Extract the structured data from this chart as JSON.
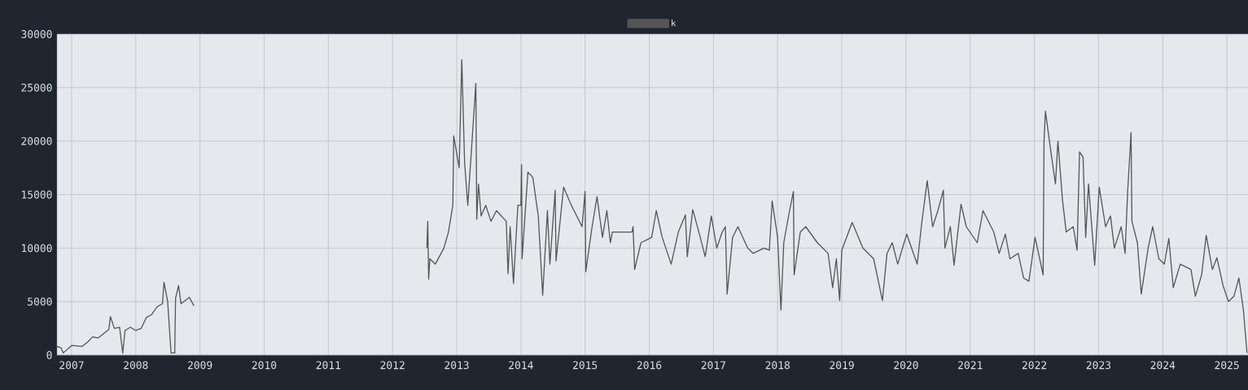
{
  "chart_data": {
    "type": "line",
    "legend": "top",
    "grid": true,
    "marker": "none",
    "line_style": "solid",
    "xlim": [
      "2006-10-10",
      "2025-05-01"
    ],
    "xticks": [
      "2007",
      "2008",
      "2009",
      "2010",
      "2011",
      "2012",
      "2013",
      "2014",
      "2015",
      "2016",
      "2017",
      "2018",
      "2019",
      "2020",
      "2021",
      "2022",
      "2023",
      "2024",
      "2025"
    ],
    "ylim": [
      0,
      30000
    ],
    "yticks": [
      0,
      5000,
      10000,
      15000,
      20000,
      25000,
      30000
    ],
    "series": [
      {
        "name": "k",
        "color": "#555555",
        "x": [
          "2006-10-10",
          "2006-11-01",
          "2006-11-15",
          "2007-01-01",
          "2007-03-01",
          "2007-04-01",
          "2007-05-01",
          "2007-06-01",
          "2007-07-01",
          "2007-08-01",
          "2007-08-10",
          "2007-09-01",
          "2007-10-01",
          "2007-10-19",
          "2007-11-01",
          "2007-12-01",
          "2008-01-01",
          "2008-02-01",
          "2008-03-01",
          "2008-04-01",
          "2008-05-01",
          "2008-06-01",
          "2008-06-10",
          "2008-07-01",
          "2008-07-20",
          "2008-08-10",
          "2008-08-15",
          "2008-09-01",
          "2008-09-15",
          "2008-10-01",
          "2008-11-01",
          "2008-11-28",
          "2010-01-01",
          "2012-07-15",
          "2012-07-20",
          "2012-07-25",
          "2012-08-01",
          "2012-09-01",
          "2012-10-20",
          "2012-11-15",
          "2012-12-10",
          "2012-12-15",
          "2013-01-15",
          "2013-01-30",
          "2013-02-15",
          "2013-03-05",
          "2013-04-20",
          "2013-04-25",
          "2013-05-05",
          "2013-05-20",
          "2013-06-15",
          "2013-07-15",
          "2013-08-15",
          "2013-10-10",
          "2013-10-20",
          "2013-11-01",
          "2013-11-20",
          "2013-12-15",
          "2014-01-01",
          "2014-01-05",
          "2014-01-08",
          "2014-02-10",
          "2014-03-10",
          "2014-04-10",
          "2014-05-05",
          "2014-06-01",
          "2014-06-15",
          "2014-07-15",
          "2014-07-20",
          "2014-09-01",
          "2014-10-15",
          "2014-12-15",
          "2015-01-01",
          "2015-01-05",
          "2015-02-10",
          "2015-03-10",
          "2015-04-10",
          "2015-05-05",
          "2015-05-25",
          "2015-06-05",
          "2015-09-25",
          "2015-10-01",
          "2015-10-10",
          "2015-11-15",
          "2016-01-15",
          "2016-02-10",
          "2016-03-15",
          "2016-05-05",
          "2016-06-15",
          "2016-07-25",
          "2016-08-05",
          "2016-09-05",
          "2016-10-10",
          "2016-11-15",
          "2016-12-20",
          "2017-01-20",
          "2017-02-20",
          "2017-03-10",
          "2017-03-20",
          "2017-04-20",
          "2017-05-20",
          "2017-07-15",
          "2017-08-15",
          "2017-10-15",
          "2017-11-15",
          "2017-12-01",
          "2018-01-01",
          "2018-01-20",
          "2018-02-05",
          "2018-03-10",
          "2018-04-01",
          "2018-04-05",
          "2018-05-10",
          "2018-06-10",
          "2018-08-15",
          "2018-10-15",
          "2018-11-10",
          "2018-12-01",
          "2018-12-20",
          "2019-01-01",
          "2019-03-01",
          "2019-05-01",
          "2019-07-01",
          "2019-08-20",
          "2019-09-15",
          "2019-10-15",
          "2019-11-15",
          "2020-01-05",
          "2020-03-05",
          "2020-04-01",
          "2020-05-01",
          "2020-06-01",
          "2020-07-01",
          "2020-08-01",
          "2020-08-10",
          "2020-09-10",
          "2020-10-01",
          "2020-11-10",
          "2020-12-10",
          "2021-02-10",
          "2021-03-15",
          "2021-05-15",
          "2021-06-15",
          "2021-07-20",
          "2021-08-15",
          "2021-10-01",
          "2021-11-01",
          "2021-12-01",
          "2022-01-05",
          "2022-02-20",
          "2022-02-25",
          "2022-03-05",
          "2022-04-05",
          "2022-05-01",
          "2022-05-15",
          "2022-06-10",
          "2022-07-01",
          "2022-08-10",
          "2022-09-01",
          "2022-09-15",
          "2022-10-05",
          "2022-10-20",
          "2022-11-05",
          "2022-12-10",
          "2023-01-05",
          "2023-02-10",
          "2023-03-10",
          "2023-04-01",
          "2023-05-10",
          "2023-06-01",
          "2023-06-15",
          "2023-07-05",
          "2023-07-10",
          "2023-08-10",
          "2023-09-01",
          "2023-10-10",
          "2023-11-05",
          "2023-12-10",
          "2024-01-10",
          "2024-02-05",
          "2024-03-01",
          "2024-04-10",
          "2024-06-10",
          "2024-07-05",
          "2024-08-10",
          "2024-09-05",
          "2024-10-10",
          "2024-11-05",
          "2024-12-10",
          "2025-01-10",
          "2025-02-10",
          "2025-03-10",
          "2025-04-05",
          "2025-04-20",
          "2025-04-25"
        ],
        "values": [
          800,
          700,
          200,
          900,
          800,
          1200,
          1700,
          1600,
          2000,
          2400,
          3600,
          2500,
          2600,
          200,
          2300,
          2600,
          2300,
          2500,
          3500,
          3800,
          4500,
          4800,
          6800,
          5000,
          200,
          200,
          5300,
          6500,
          4800,
          5000,
          5400,
          4600,
          null,
          10000,
          12500,
          7100,
          9000,
          8500,
          10000,
          11500,
          14000,
          20500,
          17500,
          27600,
          18000,
          14000,
          25400,
          12700,
          16000,
          13000,
          14000,
          12500,
          13500,
          12500,
          7600,
          12000,
          6700,
          14000,
          14000,
          17800,
          9000,
          17100,
          16600,
          13000,
          5600,
          13500,
          8500,
          15400,
          8800,
          15700,
          14000,
          12000,
          15300,
          7800,
          12000,
          14800,
          11000,
          13500,
          10500,
          11500,
          11500,
          12000,
          8000,
          10500,
          11000,
          13500,
          11000,
          8500,
          11500,
          13100,
          9200,
          13600,
          11500,
          9200,
          13000,
          10000,
          11500,
          12000,
          5700,
          11000,
          12000,
          10000,
          9500,
          10000,
          9800,
          14400,
          11000,
          4200,
          10500,
          13500,
          15300,
          7500,
          11500,
          12000,
          10500,
          9500,
          6300,
          9000,
          5100,
          9800,
          12400,
          10000,
          9000,
          5100,
          9500,
          10500,
          8500,
          11300,
          8500,
          12500,
          16300,
          12000,
          13500,
          15400,
          10000,
          12000,
          8400,
          14100,
          12000,
          10500,
          13500,
          11500,
          9500,
          11300,
          9000,
          9500,
          7200,
          6900,
          11000,
          7500,
          20000,
          22800,
          19000,
          16000,
          20000,
          14500,
          11500,
          12000,
          9800,
          19000,
          18500,
          11000,
          16000,
          8400,
          15700,
          12000,
          13000,
          10000,
          12000,
          9500,
          15100,
          20800,
          12500,
          10500,
          5700,
          10000,
          12000,
          9000,
          8500,
          10900,
          6300,
          8500,
          8000,
          5500,
          7500,
          11200,
          8000,
          9100,
          6500,
          5000,
          5500,
          7200,
          4200,
          1200,
          200
        ]
      }
    ]
  }
}
